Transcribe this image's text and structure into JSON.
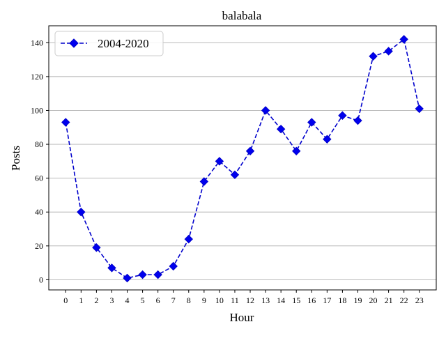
{
  "chart_data": {
    "type": "line",
    "title": "balabala",
    "xlabel": "Hour",
    "ylabel": "Posts",
    "x": [
      0,
      1,
      2,
      3,
      4,
      5,
      6,
      7,
      8,
      9,
      10,
      11,
      12,
      13,
      14,
      15,
      16,
      17,
      18,
      19,
      20,
      21,
      22,
      23
    ],
    "xtick_labels": [
      "0",
      "1",
      "2",
      "3",
      "4",
      "5",
      "6",
      "7",
      "8",
      "9",
      "10",
      "11",
      "12",
      "13",
      "14",
      "15",
      "16",
      "17",
      "18",
      "19",
      "20",
      "21",
      "22",
      "23"
    ],
    "ytick_values": [
      0,
      20,
      40,
      60,
      80,
      100,
      120,
      140
    ],
    "ytick_labels": [
      "0",
      "20",
      "40",
      "60",
      "80",
      "100",
      "120",
      "140"
    ],
    "xlim": [
      -1.1,
      24.1
    ],
    "ylim": [
      -6,
      150
    ],
    "grid": "horizontal",
    "legend_position": "upper-left",
    "series": [
      {
        "name": "2004-2020",
        "color": "#0000cc",
        "marker": "diamond",
        "linestyle": "dashed",
        "values": [
          93,
          40,
          19,
          7,
          1,
          3,
          3,
          8,
          24,
          58,
          70,
          62,
          76,
          100,
          89,
          76,
          93,
          83,
          97,
          94,
          132,
          135,
          142,
          101
        ]
      }
    ]
  }
}
